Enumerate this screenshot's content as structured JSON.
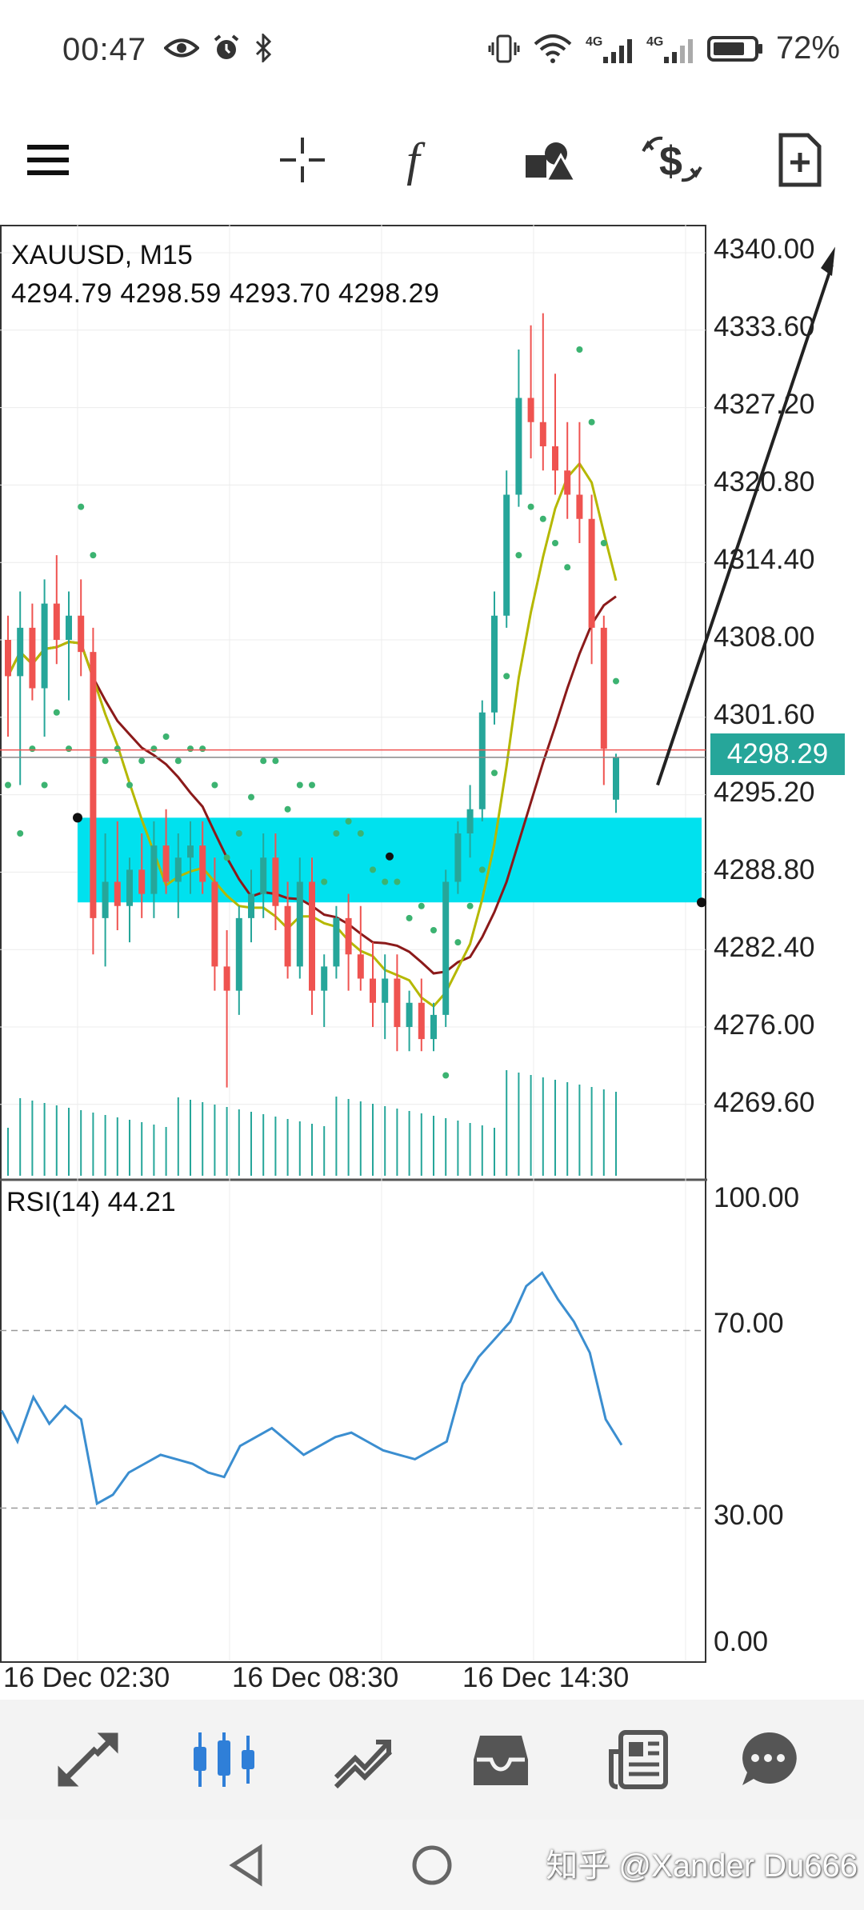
{
  "status_bar": {
    "time": "00:47",
    "battery": "72%",
    "icons_left": [
      "eye-icon",
      "alarm-icon",
      "bluetooth-icon"
    ],
    "icons_right": [
      "vibrate-icon",
      "wifi-icon",
      "4g-signal-icon",
      "4g-signal-icon",
      "battery-icon"
    ],
    "network_labels": [
      "4G",
      "4G"
    ]
  },
  "toolbar": {
    "icons": [
      "menu-icon",
      "crosshair-icon",
      "indicators-icon",
      "objects-icon",
      "trade-icon",
      "new-order-icon"
    ]
  },
  "chart": {
    "symbol": "XAUUSD, M15",
    "ohlc": "4294.79 4298.59 4293.70 4298.29",
    "current_price": "4298.29",
    "price_ticks": [
      "4340.00",
      "4333.60",
      "4327.20",
      "4320.80",
      "4314.40",
      "4308.00",
      "4301.60",
      "4295.20",
      "4288.80",
      "4282.40",
      "4276.00",
      "4269.60"
    ],
    "rsi_label": "RSI(14) 44.21",
    "rsi_ticks": [
      "100.00",
      "70.00",
      "30.00",
      "0.00"
    ],
    "time_ticks": [
      "16 Dec 02:30",
      "16 Dec 08:30",
      "16 Dec 14:30"
    ],
    "colors": {
      "bull": "#26a69a",
      "bear": "#ef5350",
      "zone": "#00e1ee",
      "ma_fast": "#b5b800",
      "ma_slow": "#8b1a1a",
      "sar": "#3cb371",
      "rsi": "#3b8ed0"
    }
  },
  "chart_data": {
    "type": "candlestick",
    "symbol": "XAUUSD",
    "timeframe": "M15",
    "price_axis": {
      "min": 4265,
      "max": 4340
    },
    "rsi_axis": {
      "min": 0,
      "max": 100,
      "levels": [
        30,
        70
      ]
    },
    "last": {
      "open": 4294.79,
      "high": 4298.59,
      "low": 4293.7,
      "close": 4298.29
    },
    "candles": [
      [
        4308,
        4310,
        4300,
        4305
      ],
      [
        4305,
        4312,
        4296,
        4309
      ],
      [
        4309,
        4311,
        4303,
        4304
      ],
      [
        4304,
        4313,
        4300,
        4311
      ],
      [
        4311,
        4315,
        4306,
        4308
      ],
      [
        4308,
        4312,
        4303,
        4310
      ],
      [
        4310,
        4313,
        4305,
        4307
      ],
      [
        4307,
        4309,
        4282,
        4285
      ],
      [
        4285,
        4292,
        4281,
        4288
      ],
      [
        4288,
        4293,
        4284,
        4286
      ],
      [
        4286,
        4290,
        4283,
        4289
      ],
      [
        4289,
        4292,
        4285,
        4287
      ],
      [
        4287,
        4293,
        4285,
        4291
      ],
      [
        4291,
        4294,
        4287,
        4288
      ],
      [
        4288,
        4292,
        4285,
        4290
      ],
      [
        4290,
        4293,
        4287,
        4291
      ],
      [
        4291,
        4293,
        4287,
        4288
      ],
      [
        4288,
        4290,
        4279,
        4281
      ],
      [
        4281,
        4284,
        4271,
        4279
      ],
      [
        4279,
        4286,
        4277,
        4285
      ],
      [
        4285,
        4289,
        4283,
        4287
      ],
      [
        4287,
        4292,
        4285,
        4290
      ],
      [
        4290,
        4292,
        4284,
        4286
      ],
      [
        4286,
        4288,
        4280,
        4281
      ],
      [
        4281,
        4290,
        4280,
        4288
      ],
      [
        4288,
        4290,
        4277,
        4279
      ],
      [
        4279,
        4282,
        4276,
        4281
      ],
      [
        4281,
        4286,
        4280,
        4285
      ],
      [
        4285,
        4287,
        4279,
        4282
      ],
      [
        4282,
        4286,
        4279,
        4280
      ],
      [
        4280,
        4283,
        4276,
        4278
      ],
      [
        4278,
        4282,
        4275,
        4280
      ],
      [
        4280,
        4282,
        4274,
        4276
      ],
      [
        4276,
        4279,
        4274,
        4278
      ],
      [
        4278,
        4280,
        4274,
        4275
      ],
      [
        4275,
        4278,
        4274,
        4277
      ],
      [
        4277,
        4289,
        4276,
        4288
      ],
      [
        4288,
        4293,
        4287,
        4292
      ],
      [
        4292,
        4296,
        4290,
        4294
      ],
      [
        4294,
        4303,
        4293,
        4302
      ],
      [
        4302,
        4312,
        4301,
        4310
      ],
      [
        4310,
        4322,
        4309,
        4320
      ],
      [
        4320,
        4332,
        4319,
        4328
      ],
      [
        4328,
        4334,
        4323,
        4326
      ],
      [
        4326,
        4335,
        4322,
        4324
      ],
      [
        4324,
        4330,
        4320,
        4322
      ],
      [
        4322,
        4326,
        4318,
        4320
      ],
      [
        4320,
        4326,
        4316,
        4318
      ],
      [
        4318,
        4320,
        4306,
        4309
      ],
      [
        4309,
        4310,
        4296,
        4299
      ],
      [
        4294.79,
        4298.59,
        4293.7,
        4298.29
      ]
    ],
    "rsi_values": [
      52,
      45,
      55,
      49,
      53,
      50,
      31,
      33,
      38,
      40,
      42,
      41,
      40,
      38,
      37,
      44,
      46,
      48,
      45,
      42,
      44,
      46,
      47,
      45,
      43,
      42,
      41,
      43,
      45,
      58,
      64,
      68,
      72,
      80,
      83,
      77,
      72,
      65,
      50,
      44.21
    ]
  },
  "bottom_nav": {
    "items": [
      "quotes-icon",
      "chart-icon",
      "trade-icon",
      "history-icon",
      "news-icon",
      "messages-icon"
    ]
  },
  "system_nav": {
    "items": [
      "back-icon",
      "home-icon"
    ]
  },
  "watermark": "知乎 @Xander Du666"
}
